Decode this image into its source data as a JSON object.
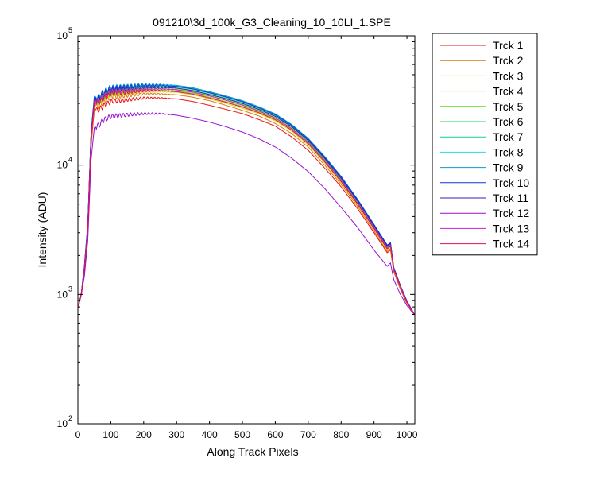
{
  "chart_data": {
    "type": "line",
    "title": "091210\\3d_100k_G3_Cleaning_10_10LI_1.SPE",
    "xlabel": "Along Track Pixels",
    "ylabel": "Intensity (ADU)",
    "xlim": [
      0,
      1024
    ],
    "ylim": [
      100,
      100000
    ],
    "yscale": "log",
    "xticks": [
      0,
      100,
      200,
      300,
      400,
      500,
      600,
      700,
      800,
      900,
      1000
    ],
    "yticks": [
      {
        "value": 100,
        "base": "10",
        "exp": "2"
      },
      {
        "value": 1000,
        "base": "10",
        "exp": "3"
      },
      {
        "value": 10000,
        "base": "10",
        "exp": "4"
      },
      {
        "value": 100000,
        "base": "10",
        "exp": "5"
      }
    ],
    "grid": false,
    "legend_position": "outside-right",
    "x": [
      0,
      10,
      20,
      30,
      40,
      50,
      60,
      80,
      100,
      150,
      200,
      250,
      300,
      350,
      400,
      450,
      500,
      550,
      600,
      650,
      700,
      750,
      800,
      850,
      900,
      940,
      950,
      960,
      980,
      1000,
      1024
    ],
    "series": [
      {
        "name": "Trck 1",
        "color": "#ee1111",
        "values": [
          780,
          1000,
          1500,
          3000,
          14000,
          27000,
          26500,
          29000,
          31000,
          32000,
          33000,
          33000,
          32500,
          31000,
          29000,
          27000,
          25000,
          22500,
          20000,
          16500,
          13000,
          9500,
          6800,
          4600,
          3000,
          2100,
          2200,
          1500,
          1100,
          850,
          690
        ]
      },
      {
        "name": "Trck 2",
        "color": "#dd7711",
        "values": [
          780,
          1000,
          1550,
          3100,
          15000,
          29000,
          28500,
          31000,
          33500,
          34500,
          35500,
          35500,
          35000,
          33500,
          31500,
          29000,
          26500,
          24000,
          21000,
          17500,
          13800,
          10000,
          7100,
          4800,
          3100,
          2150,
          2250,
          1530,
          1120,
          860,
          690
        ]
      },
      {
        "name": "Trck 3",
        "color": "#dddd11",
        "values": [
          780,
          1000,
          1580,
          3200,
          15500,
          30000,
          29500,
          32500,
          35000,
          36000,
          37000,
          37000,
          36500,
          35000,
          32500,
          30000,
          27500,
          25000,
          22000,
          18200,
          14300,
          10400,
          7300,
          4900,
          3200,
          2200,
          2300,
          1550,
          1130,
          865,
          690
        ]
      },
      {
        "name": "Trck 4",
        "color": "#99cc11",
        "values": [
          780,
          1000,
          1600,
          3300,
          16000,
          31000,
          30500,
          33500,
          36000,
          37000,
          38000,
          38000,
          37500,
          36000,
          33500,
          31000,
          28500,
          25800,
          22700,
          18800,
          14700,
          10700,
          7500,
          5000,
          3250,
          2250,
          2350,
          1570,
          1140,
          870,
          690
        ]
      },
      {
        "name": "Trck 5",
        "color": "#55dd22",
        "values": [
          780,
          1000,
          1620,
          3350,
          16500,
          32000,
          31500,
          34500,
          37000,
          38000,
          39000,
          39000,
          38500,
          37000,
          34500,
          32000,
          29500,
          26500,
          23300,
          19300,
          15100,
          11000,
          7700,
          5100,
          3300,
          2300,
          2400,
          1580,
          1150,
          875,
          690
        ]
      },
      {
        "name": "Trck 6",
        "color": "#11dd55",
        "values": [
          780,
          1000,
          1640,
          3400,
          17000,
          32500,
          32000,
          35500,
          38000,
          39000,
          40000,
          40000,
          39500,
          37800,
          35300,
          32700,
          30000,
          27000,
          23800,
          19700,
          15400,
          11200,
          7850,
          5200,
          3350,
          2330,
          2430,
          1590,
          1160,
          880,
          690
        ]
      },
      {
        "name": "Trck 7",
        "color": "#11cc99",
        "values": [
          780,
          1000,
          1660,
          3450,
          17300,
          33000,
          32500,
          36000,
          38800,
          39800,
          40800,
          40800,
          40200,
          38500,
          36000,
          33300,
          30600,
          27500,
          24200,
          20000,
          15700,
          11400,
          8000,
          5300,
          3400,
          2360,
          2460,
          1600,
          1165,
          885,
          690
        ]
      },
      {
        "name": "Trck 8",
        "color": "#22dddd",
        "values": [
          780,
          1000,
          1680,
          3500,
          17600,
          33500,
          33000,
          36800,
          39600,
          40600,
          41600,
          41600,
          41000,
          39200,
          36700,
          34000,
          31200,
          28000,
          24600,
          20400,
          16000,
          11600,
          8100,
          5400,
          3450,
          2390,
          2490,
          1610,
          1170,
          890,
          690
        ]
      },
      {
        "name": "Trck 9",
        "color": "#1199cc",
        "values": [
          780,
          1000,
          1690,
          3520,
          17800,
          34000,
          33300,
          37300,
          40000,
          41000,
          42000,
          42000,
          41400,
          39600,
          37000,
          34300,
          31500,
          28300,
          24900,
          20600,
          16100,
          11700,
          8200,
          5450,
          3480,
          2410,
          2510,
          1620,
          1175,
          892,
          690
        ]
      },
      {
        "name": "Trck 10",
        "color": "#1133dd",
        "values": [
          780,
          1000,
          1680,
          3500,
          17500,
          33500,
          32800,
          36500,
          39200,
          40200,
          41200,
          41200,
          40600,
          38800,
          36300,
          33700,
          31000,
          27800,
          24500,
          20300,
          15900,
          11500,
          8100,
          5400,
          3450,
          2400,
          2500,
          1615,
          1170,
          890,
          690
        ]
      },
      {
        "name": "Trck 11",
        "color": "#3322bb",
        "values": [
          780,
          1000,
          1650,
          3400,
          17000,
          32500,
          32000,
          35300,
          37900,
          38900,
          39900,
          39900,
          39300,
          37600,
          35100,
          32600,
          30000,
          27000,
          23800,
          19800,
          15500,
          11300,
          7900,
          5300,
          3400,
          2360,
          2460,
          1595,
          1160,
          882,
          690
        ]
      },
      {
        "name": "Trck 12",
        "color": "#9911cc",
        "values": [
          780,
          980,
          1400,
          2600,
          11000,
          19500,
          20000,
          22500,
          23800,
          24500,
          25000,
          25000,
          24300,
          23000,
          21500,
          19800,
          18000,
          16000,
          13800,
          11300,
          8900,
          6600,
          4700,
          3300,
          2200,
          1650,
          1750,
          1300,
          1000,
          820,
          690
        ]
      },
      {
        "name": "Trck 13",
        "color": "#cc22cc",
        "values": [
          780,
          1000,
          1620,
          3300,
          16200,
          31500,
          31000,
          34200,
          36800,
          37800,
          38800,
          38800,
          38200,
          36600,
          34200,
          31700,
          29100,
          26200,
          23100,
          19100,
          15000,
          10900,
          7650,
          5100,
          3300,
          2300,
          2400,
          1575,
          1150,
          875,
          690
        ]
      },
      {
        "name": "Trck 14",
        "color": "#dd1155",
        "values": [
          780,
          1000,
          1590,
          3250,
          15800,
          30500,
          30000,
          33000,
          35600,
          36600,
          37600,
          37600,
          37000,
          35400,
          33000,
          30600,
          28100,
          25400,
          22400,
          18600,
          14600,
          10600,
          7450,
          5000,
          3230,
          2250,
          2350,
          1560,
          1140,
          868,
          690
        ]
      }
    ]
  }
}
